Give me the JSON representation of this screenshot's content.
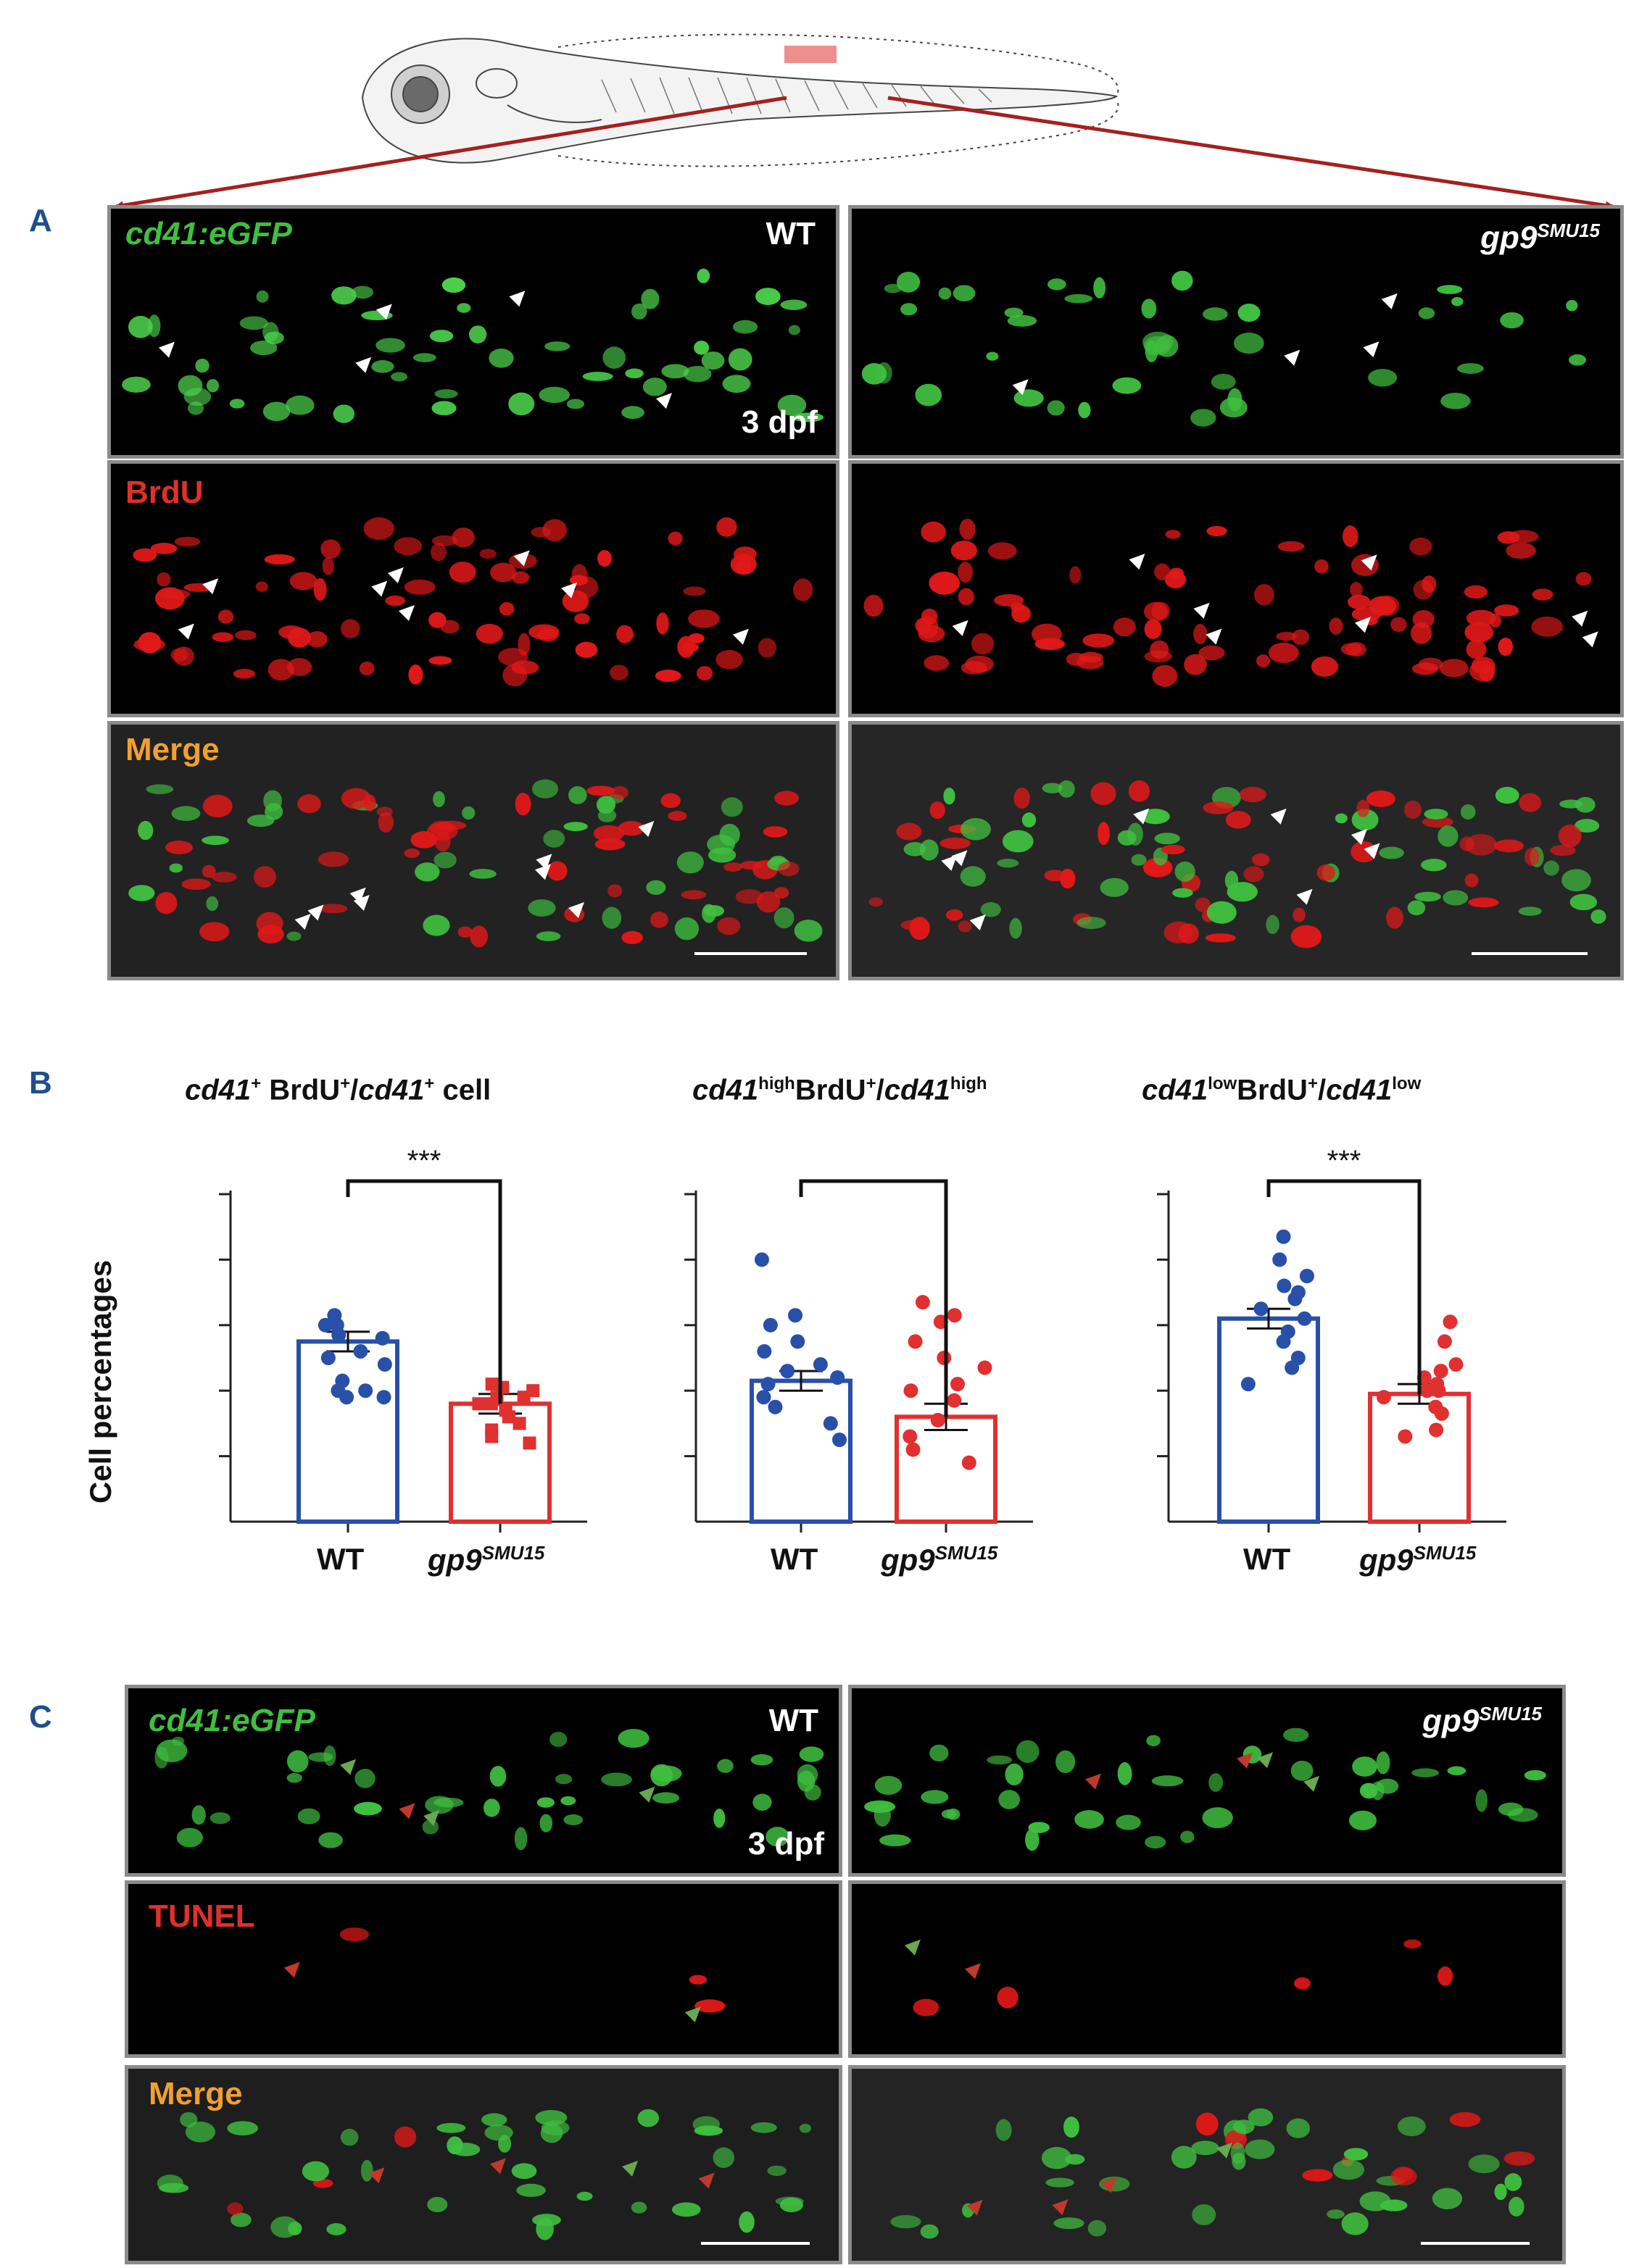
{
  "panel_letters": {
    "a": "A",
    "b": "B",
    "c": "C"
  },
  "panel_a": {
    "label_gfp": "cd41:eGFP",
    "label_brdu": "BrdU",
    "label_merge": "Merge",
    "wt": "WT",
    "mut_base": "gp9",
    "mut_sup": "SMU15",
    "age": "3 dpf"
  },
  "panel_c": {
    "label_gfp": "cd41:eGFP",
    "label_tunel": "TUNEL",
    "label_merge": "Merge",
    "wt": "WT",
    "mut_base": "gp9",
    "mut_sup": "SMU15",
    "age": "3 dpf"
  },
  "panel_b": {
    "ylabel": "Cell percentages",
    "xticks": [
      "WT",
      "gp9"
    ],
    "xtick_sup": "SMU15",
    "sig_label": "***",
    "colors": {
      "wt": "#2850a8",
      "mut": "#e03030"
    }
  },
  "chart_data": [
    {
      "type": "bar",
      "title": "cd41+ BrdU+/cd41+ cell",
      "categories": [
        "WT",
        "gp9SMU15"
      ],
      "values": [
        55,
        36
      ],
      "sem": [
        3,
        3
      ],
      "ylim": [
        0,
        100
      ],
      "significance": "***",
      "points": {
        "WT": [
          63,
          60,
          56,
          57,
          52,
          50,
          48,
          43,
          40,
          38,
          38,
          40,
          60
        ],
        "gp9SMU15": [
          41,
          42,
          40,
          38,
          36,
          34,
          32,
          30,
          28,
          26,
          24,
          38,
          36
        ]
      }
    },
    {
      "type": "bar",
      "title": "cd41highBrdU+/cd41high",
      "categories": [
        "WT",
        "gp9SMU15"
      ],
      "values": [
        43,
        32
      ],
      "sem": [
        3,
        4
      ],
      "ylim": [
        0,
        100
      ],
      "significance": "",
      "points": {
        "WT": [
          80,
          63,
          55,
          52,
          48,
          46,
          44,
          42,
          38,
          35,
          30,
          25,
          60
        ],
        "gp9SMU15": [
          67,
          63,
          61,
          55,
          50,
          42,
          37,
          31,
          26,
          22,
          18,
          40,
          47
        ]
      }
    },
    {
      "type": "bar",
      "title": "cd41lowBrdU+/cd41low",
      "categories": [
        "WT",
        "gp9SMU15"
      ],
      "values": [
        62,
        39
      ],
      "sem": [
        3,
        3
      ],
      "ylim": [
        0,
        100
      ],
      "significance": "***",
      "points": {
        "WT": [
          87,
          80,
          75,
          72,
          68,
          65,
          62,
          58,
          55,
          50,
          47,
          42,
          70
        ],
        "gp9SMU15": [
          61,
          55,
          48,
          46,
          44,
          42,
          40,
          38,
          35,
          33,
          28,
          26,
          40
        ]
      }
    }
  ]
}
